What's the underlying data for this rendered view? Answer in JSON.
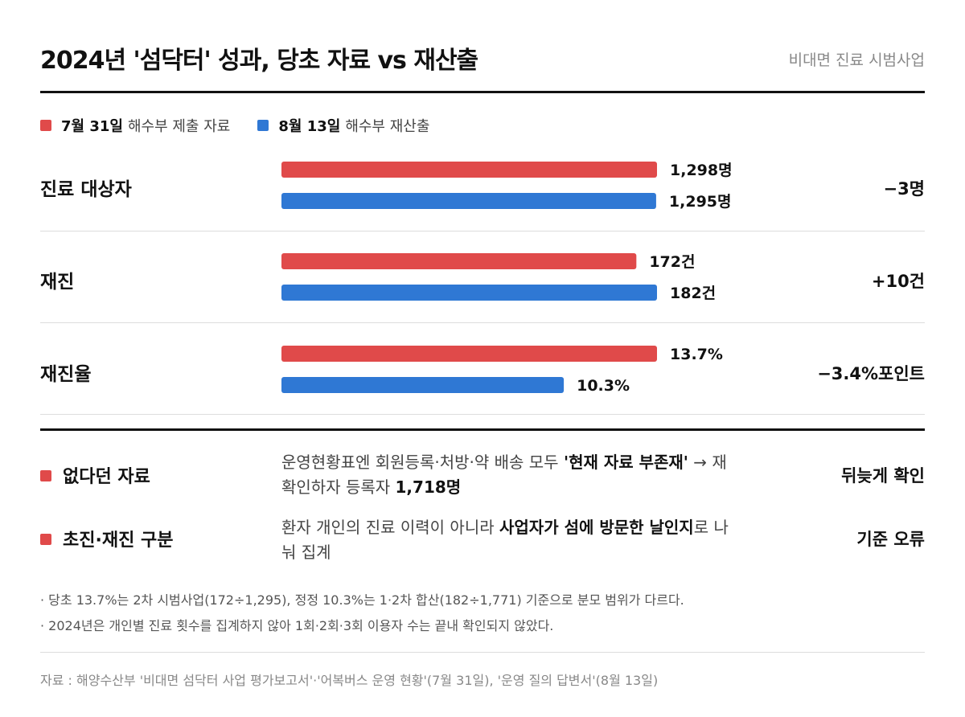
{
  "header": {
    "title": "2024년 '섬닥터' 성과, 당초 자료 vs 재산출",
    "subtitle": "비대면 진료 시범사업"
  },
  "legend": [
    {
      "bold": "7월 31일",
      "rest": "해수부 제출 자료",
      "color": "#e04a4a"
    },
    {
      "bold": "8월 13일",
      "rest": "해수부 재산출",
      "color": "#2f78d4"
    }
  ],
  "chart_data": {
    "type": "bar",
    "orientation": "horizontal",
    "series": [
      {
        "name": "7월 31일 해수부 제출 자료",
        "color": "#e04a4a"
      },
      {
        "name": "8월 13일 해수부 재산출",
        "color": "#2f78d4"
      }
    ],
    "groups": [
      {
        "category": "진료 대상자",
        "values": [
          1298,
          1295
        ],
        "labels": [
          "1,298명",
          "1,295명"
        ],
        "diff": "−3명",
        "max": 1298
      },
      {
        "category": "재진",
        "values": [
          172,
          182
        ],
        "labels": [
          "172건",
          "182건"
        ],
        "diff": "+10건",
        "max": 182
      },
      {
        "category": "재진율",
        "values": [
          13.7,
          10.3
        ],
        "labels": [
          "13.7%",
          "10.3%"
        ],
        "diff": "−3.4%포인트",
        "max": 13.7
      }
    ]
  },
  "notes": [
    {
      "label": "없다던 자료",
      "desc_1": "운영현황표엔 회원등록·처방·약 배송 모두 ",
      "desc_bold_1": "'현재 자료 부존재'",
      "desc_2": " → 재확인하자 등록자 ",
      "desc_bold_2": "1,718명",
      "right": "뒤늦게 확인"
    },
    {
      "label": "초진·재진 구분",
      "desc_1": "환자 개인의 진료 이력이 아니라 ",
      "desc_bold_1": "사업자가 섬에 방문한 날인지",
      "desc_2": "로 나눠 집계",
      "right": "기준 오류"
    }
  ],
  "footnotes": [
    "· 당초 13.7%는 2차 시범사업(172÷1,295), 정정 10.3%는 1·2차 합산(182÷1,771) 기준으로 분모 범위가 다르다.",
    "· 2024년은 개인별 진료 횟수를 집계하지 않아 1회·2회·3회 이용자 수는 끝내 확인되지 않았다."
  ],
  "source": "자료 : 해양수산부 '비대면 섬닥터 사업 평가보고서'·'어복버스 운영 현황'(7월 31일), '운영 질의 답변서'(8월 13일)"
}
